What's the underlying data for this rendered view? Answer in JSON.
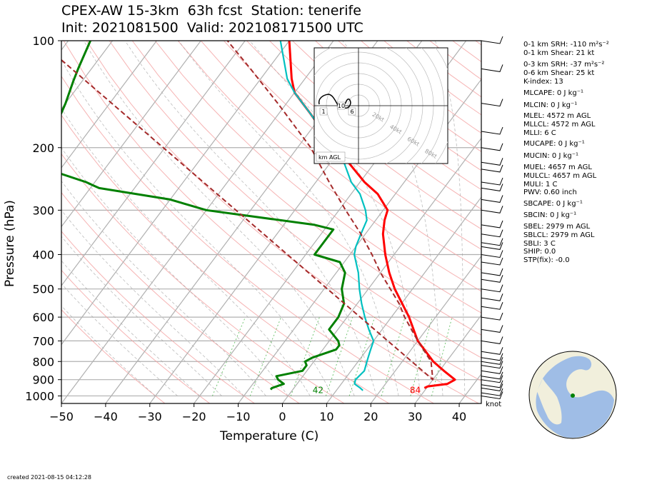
{
  "header": {
    "line1": "CPEX-AW 15-3km  63h fcst  Station: tenerife",
    "line2": "Init: 2021081500  Valid: 202108171500 UTC"
  },
  "chart_data": {
    "type": "line",
    "subtype": "skew-T log-p sounding",
    "xlabel": "Temperature (C)",
    "ylabel": "Pressure (hPa)",
    "xlim": [
      -50,
      45
    ],
    "ylim": [
      1050,
      100
    ],
    "y_scale": "log",
    "x_ticks": [
      -50,
      -40,
      -30,
      -20,
      -10,
      0,
      10,
      20,
      30,
      40
    ],
    "y_ticks": [
      100,
      200,
      300,
      400,
      500,
      600,
      700,
      800,
      900,
      1000
    ],
    "grid": true,
    "colors": {
      "temperature": "#ff0000",
      "dewpoint": "#008000",
      "wetbulb": "#00c0c0",
      "parcel": "#a52a2a"
    },
    "series": [
      {
        "p": [
          950,
          940,
          925,
          900,
          850,
          800,
          700,
          600,
          500,
          450,
          400,
          350,
          320,
          300,
          270,
          250,
          220,
          200,
          180,
          160,
          140,
          128,
          100
        ],
        "t": [
          29.5,
          30,
          34,
          35,
          31,
          27,
          20,
          14,
          6,
          2,
          -2,
          -6,
          -8,
          -9,
          -14,
          -19,
          -26,
          -31,
          -37,
          -43,
          -50,
          -53,
          -60
        ]
      },
      {
        "p": [
          960,
          955,
          950,
          925,
          900,
          880,
          850,
          820,
          800,
          780,
          740,
          720,
          700,
          650,
          600,
          550,
          500,
          450,
          420,
          400,
          340,
          330,
          300,
          280,
          260,
          255,
          250,
          230,
          200,
          180,
          150,
          130,
          120,
          100
        ],
        "t": [
          -5,
          -5,
          -5,
          -3,
          -5,
          -6,
          -1,
          -1,
          -2,
          -1,
          3,
          3,
          2,
          -2,
          -2,
          -3,
          -6,
          -8,
          -11,
          -18,
          -18,
          -23,
          -50,
          -60,
          -78,
          -80,
          -82,
          -93,
          -95,
          -98,
          -100,
          -102,
          -103,
          -105
        ]
      },
      {
        "p": [
          965,
          950,
          925,
          900,
          850,
          800,
          750,
          700,
          650,
          600,
          550,
          500,
          450,
          400,
          380,
          350,
          320,
          300,
          270,
          250,
          220,
          200,
          180,
          160,
          140,
          128,
          100
        ],
        "t": [
          16,
          15,
          13,
          12.5,
          13,
          12,
          11,
          10,
          7,
          4,
          1,
          -2,
          -5,
          -9,
          -10,
          -11,
          -12,
          -14,
          -18,
          -22,
          -27,
          -31,
          -37,
          -43,
          -50,
          -54,
          -62
        ]
      },
      {
        "p": [
          1030,
          900,
          800,
          700,
          600,
          550,
          500,
          450,
          400,
          350,
          300,
          250,
          200,
          150,
          120,
          100
        ],
        "t": [
          null,
          30,
          26.5,
          20,
          13,
          9.5,
          5,
          0,
          -5,
          -11,
          -18.5,
          -27,
          -37,
          -52,
          -64,
          -74
        ]
      }
    ],
    "surface_labels": {
      "dewpoint": "42",
      "temperature": "84"
    },
    "wind_units": "knot"
  },
  "indices": [
    {
      "text": "0-1 km SRH: -110 m²s⁻²"
    },
    {
      "text": "0-1 km Shear: 21 kt"
    },
    {
      "text": "0-3 km SRH: -37 m²s⁻²"
    },
    {
      "text": "0-6 km Shear: 25 kt"
    },
    {
      "text": "K-index: 13"
    },
    {
      "text": "MLCAPE: 0 J kg⁻¹"
    },
    {
      "text": "MLCIN: 0 J kg⁻¹"
    },
    {
      "text": "MLEL: 4572 m AGL"
    },
    {
      "text": "MLLCL: 4572 m AGL"
    },
    {
      "text": "MLLI: 6 C"
    },
    {
      "text": "MUCAPE: 0 J kg⁻¹"
    },
    {
      "text": "MUCIN: 0 J kg⁻¹"
    },
    {
      "text": "MUEL: 4657 m AGL"
    },
    {
      "text": "MULCL: 4657 m AGL"
    },
    {
      "text": "MULI: 1 C"
    },
    {
      "text": "PWV: 0.60 inch"
    },
    {
      "text": "SBCAPE: 0 J kg⁻¹"
    },
    {
      "text": "SBCIN: 0 J kg⁻¹"
    },
    {
      "text": "SBEL: 2979 m AGL"
    },
    {
      "text": "SBLCL: 2979 m AGL"
    },
    {
      "text": "SBLI: 3 C"
    },
    {
      "text": "SHIP: 0.0"
    },
    {
      "text": "STP(fix): -0.0"
    }
  ],
  "hodograph": {
    "axis_label": "km AGL",
    "rings": [
      "20kt",
      "40kt",
      "60kt",
      "80kt"
    ],
    "height_markers": [
      "1",
      "10",
      "6"
    ]
  },
  "footer": {
    "created": "created 2021-08-15 04:12:28"
  }
}
